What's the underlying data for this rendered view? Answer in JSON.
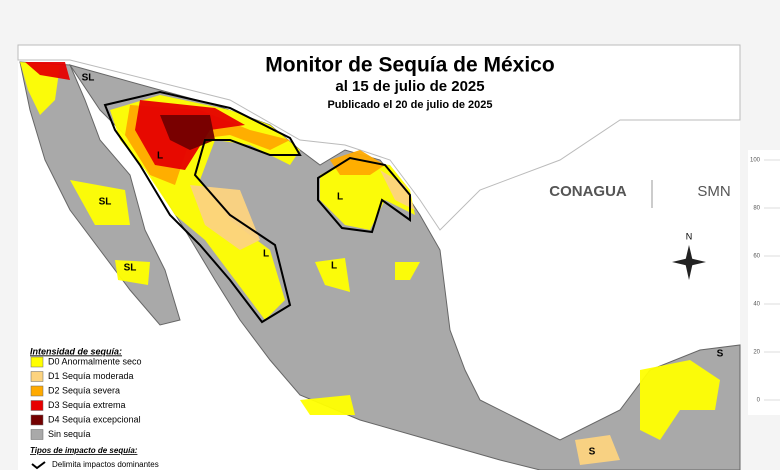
{
  "map": {
    "title": "Monitor de Sequía de México",
    "subtitle": "al 15 de julio de 2025",
    "published": "Publicado el 20 de julio de 2025",
    "legend": {
      "title": "Intensidad de sequía:",
      "items": [
        {
          "label": "D0 Anormalmente seco",
          "color": "#ffff00"
        },
        {
          "label": "D1 Sequía moderada",
          "color": "#fcd37f"
        },
        {
          "label": "D2 Sequía severa",
          "color": "#ffaa00"
        },
        {
          "label": "D3 Sequía extrema",
          "color": "#e60000"
        },
        {
          "label": "D4 Sequía excepcional",
          "color": "#730000"
        },
        {
          "label": "Sin sequía",
          "color": "#a9a9a9"
        }
      ]
    },
    "impact_title": "Tipos de impacto de sequía:",
    "impact_item": "Delimita impactos dominantes",
    "region_labels": [
      "SL",
      "SL",
      "SL",
      "L",
      "L",
      "L",
      "L",
      "S",
      "S"
    ],
    "compass": "N",
    "logos": [
      "CONAGUA",
      "SMN"
    ],
    "side_chart_ticks": [
      100,
      80,
      60,
      40,
      20,
      0
    ]
  }
}
